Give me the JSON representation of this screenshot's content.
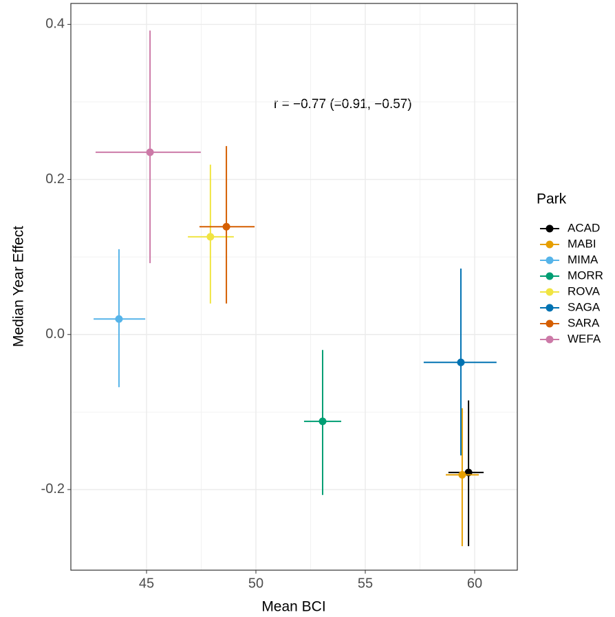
{
  "chart_data": {
    "type": "errorbar-scatter",
    "x_label": "Mean BCI",
    "y_label": "Median Year Effect",
    "annotation": "r = −0.77 (=0.91, −0.57)",
    "legend_title": "Park",
    "legend": "right",
    "grid": true,
    "xlim": [
      41.54,
      61.95
    ],
    "xticks": [
      45,
      50,
      55,
      60
    ],
    "ylim": [
      -0.304,
      0.427
    ],
    "yticks": [
      -0.2,
      {
        "value": 0,
        "label": "0.0"
      },
      0.2,
      0.4
    ],
    "series": [
      {
        "name": "ACAD",
        "color": "#000000",
        "x": [
          59.72
        ],
        "xlow": [
          58.8
        ],
        "xhigh": [
          60.41
        ],
        "y": [
          -0.178
        ],
        "ylow": [
          -0.273
        ],
        "yhigh": [
          -0.085
        ]
      },
      {
        "name": "MABI",
        "color": "#E69F00",
        "x": [
          59.43
        ],
        "xlow": [
          58.68
        ],
        "xhigh": [
          60.19
        ],
        "y": [
          -0.181
        ],
        "ylow": [
          -0.273
        ],
        "yhigh": [
          -0.095
        ]
      },
      {
        "name": "MIMA",
        "color": "#56B4E9",
        "x": [
          43.74
        ],
        "xlow": [
          42.58
        ],
        "xhigh": [
          44.94
        ],
        "y": [
          0.02
        ],
        "ylow": [
          -0.068
        ],
        "yhigh": [
          0.11
        ]
      },
      {
        "name": "MORR",
        "color": "#009E73",
        "x": [
          53.05
        ],
        "xlow": [
          52.2
        ],
        "xhigh": [
          53.9
        ],
        "y": [
          -0.112
        ],
        "ylow": [
          -0.207
        ],
        "yhigh": [
          -0.02
        ]
      },
      {
        "name": "ROVA",
        "color": "#F0E442",
        "x": [
          47.92
        ],
        "xlow": [
          46.89
        ],
        "xhigh": [
          48.99
        ],
        "y": [
          0.126
        ],
        "ylow": [
          0.04
        ],
        "yhigh": [
          0.219
        ]
      },
      {
        "name": "SAGA",
        "color": "#0072B2",
        "x": [
          59.37
        ],
        "xlow": [
          57.67
        ],
        "xhigh": [
          61.0
        ],
        "y": [
          -0.036
        ],
        "ylow": [
          -0.156
        ],
        "yhigh": [
          0.085
        ]
      },
      {
        "name": "SARA",
        "color": "#D55E00",
        "x": [
          48.65
        ],
        "xlow": [
          47.42
        ],
        "xhigh": [
          49.94
        ],
        "y": [
          0.139
        ],
        "ylow": [
          0.04
        ],
        "yhigh": [
          0.243
        ]
      },
      {
        "name": "WEFA",
        "color": "#CC79A7",
        "x": [
          45.16
        ],
        "xlow": [
          42.67
        ],
        "xhigh": [
          47.48
        ],
        "y": [
          0.235
        ],
        "ylow": [
          0.092
        ],
        "yhigh": [
          0.392
        ]
      }
    ]
  }
}
